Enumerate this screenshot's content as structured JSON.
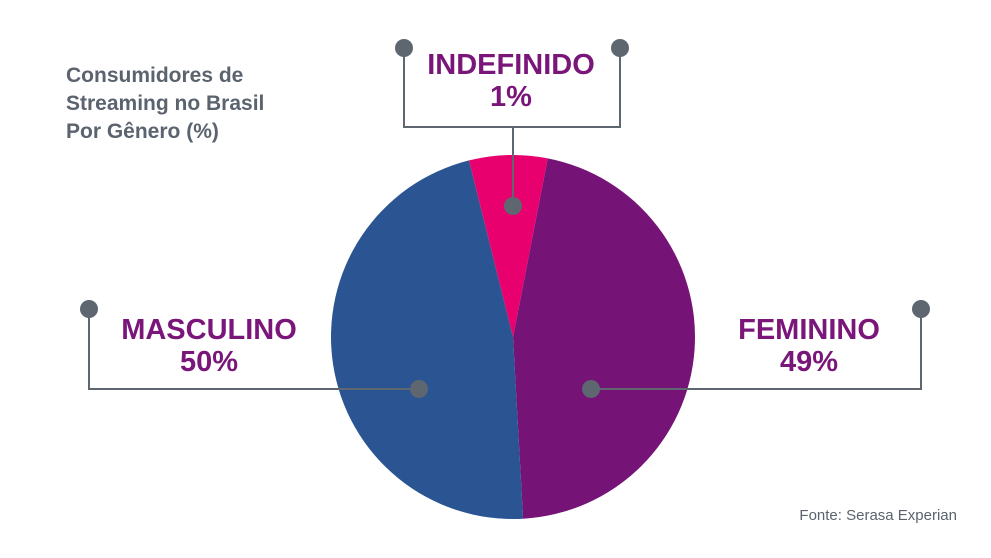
{
  "chart_data": {
    "type": "pie",
    "title": "Consumidores de\nStreaming no Brasil\nPor Gênero (%)",
    "slices": [
      {
        "label": "FEMININO",
        "value": 49,
        "value_label": "49%",
        "color": "#761377"
      },
      {
        "label": "MASCULINO",
        "value": 50,
        "value_label": "50%",
        "color": "#2a5592"
      },
      {
        "label": "INDEFINIDO",
        "value": 1,
        "value_label": "1%",
        "color": "#e8006f"
      }
    ],
    "legend": "callout labels",
    "source": "Fonte: Serasa Experian",
    "callout_color": "#5e6670"
  }
}
